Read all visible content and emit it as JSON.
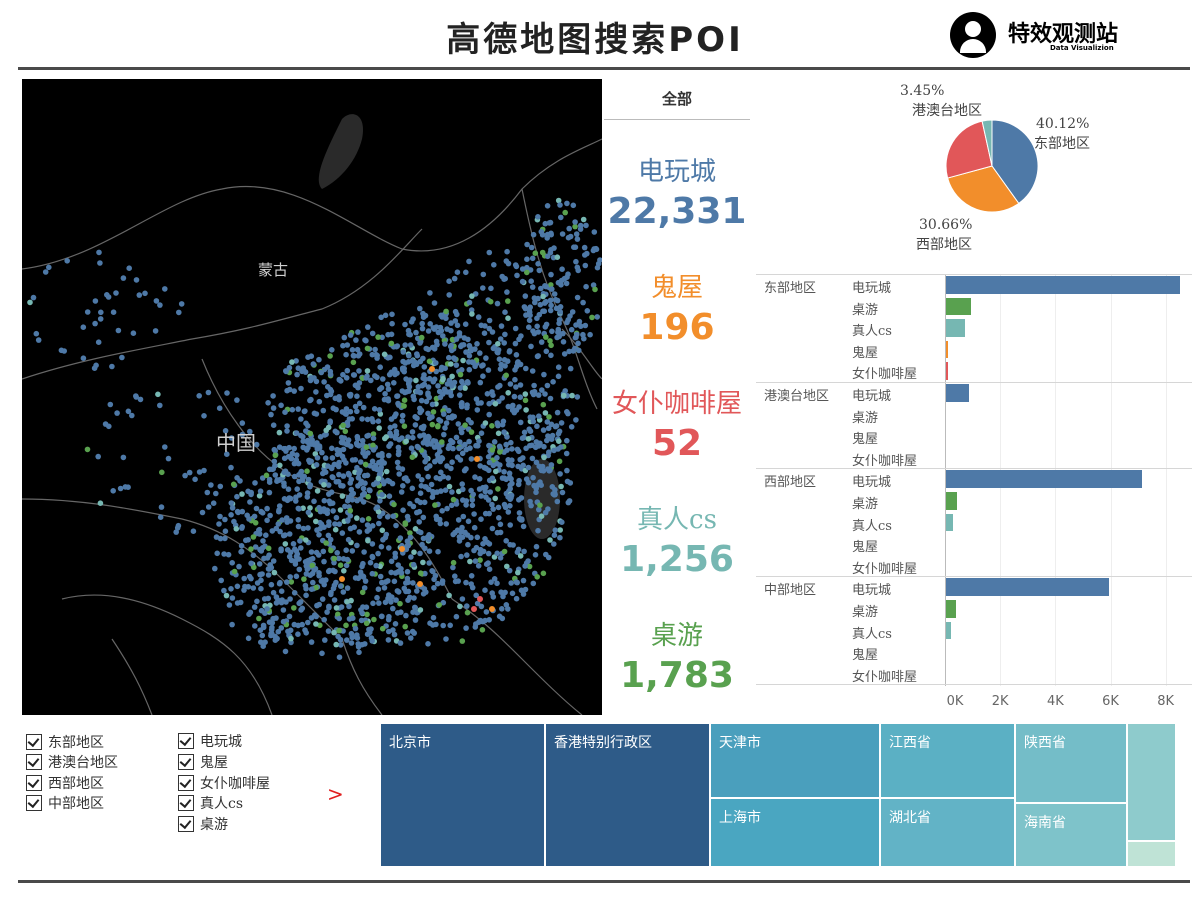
{
  "title": "高德地图搜索POI",
  "logo": {
    "name": "特效观测站",
    "subtitle": "Data Visualizion",
    "icon": "user-silhouette-icon"
  },
  "map": {
    "labels": [
      {
        "text": "蒙古"
      },
      {
        "text": "中国"
      }
    ],
    "point_colors": {
      "电玩城": "#4e79a7",
      "桌游": "#59a14f",
      "真人cs": "#76b7b2",
      "鬼屋": "#f28e2b",
      "女仆咖啡屋": "#e15759"
    }
  },
  "kpi": {
    "header": "全部",
    "items": [
      {
        "label": "电玩城",
        "value": "22,331",
        "color": "#4e79a7"
      },
      {
        "label": "鬼屋",
        "value": "196",
        "color": "#f28e2b"
      },
      {
        "label": "女仆咖啡屋",
        "value": "52",
        "color": "#e15759"
      },
      {
        "label": "真人cs",
        "value": "1,256",
        "color": "#76b7b2"
      },
      {
        "label": "桌游",
        "value": "1,783",
        "color": "#59a14f"
      }
    ]
  },
  "chart_data": [
    {
      "type": "pie",
      "slices": [
        {
          "name": "东部地区",
          "percent": 40.12,
          "label": "40.12%",
          "color": "#4e79a7"
        },
        {
          "name": "西部地区",
          "percent": 30.66,
          "label": "30.66%",
          "color": "#f28e2b"
        },
        {
          "name": "中部地区",
          "percent": 25.77,
          "label": "",
          "color": "#e15759"
        },
        {
          "name": "港澳台地区",
          "percent": 3.45,
          "label": "3.45%",
          "color": "#76b7b2"
        }
      ]
    },
    {
      "type": "bar",
      "orientation": "horizontal",
      "xlim": [
        0,
        8700
      ],
      "xticks": [
        {
          "value": 0,
          "label": "0K"
        },
        {
          "value": 2000,
          "label": "2K"
        },
        {
          "value": 4000,
          "label": "4K"
        },
        {
          "value": 6000,
          "label": "6K"
        },
        {
          "value": 8000,
          "label": "8K"
        }
      ],
      "categories": [
        "电玩城",
        "桌游",
        "真人cs",
        "鬼屋",
        "女仆咖啡屋"
      ],
      "colors": {
        "电玩城": "#4e79a7",
        "桌游": "#59a14f",
        "真人cs": "#76b7b2",
        "鬼屋": "#f28e2b",
        "女仆咖啡屋": "#e15759"
      },
      "groups": [
        {
          "region": "东部地区",
          "rows": [
            {
              "cat": "电玩城",
              "value": 8500
            },
            {
              "cat": "桌游",
              "value": 900
            },
            {
              "cat": "真人cs",
              "value": 700
            },
            {
              "cat": "鬼屋",
              "value": 80
            },
            {
              "cat": "女仆咖啡屋",
              "value": 20
            }
          ]
        },
        {
          "region": "港澳台地区",
          "rows": [
            {
              "cat": "电玩城",
              "value": 830
            },
            {
              "cat": "桌游",
              "value": 0
            },
            {
              "cat": "鬼屋",
              "value": 0
            },
            {
              "cat": "女仆咖啡屋",
              "value": 0
            }
          ]
        },
        {
          "region": "西部地区",
          "rows": [
            {
              "cat": "电玩城",
              "value": 7100
            },
            {
              "cat": "桌游",
              "value": 400
            },
            {
              "cat": "真人cs",
              "value": 260
            },
            {
              "cat": "鬼屋",
              "value": 0
            },
            {
              "cat": "女仆咖啡屋",
              "value": 0
            }
          ]
        },
        {
          "region": "中部地区",
          "rows": [
            {
              "cat": "电玩城",
              "value": 5900
            },
            {
              "cat": "桌游",
              "value": 350
            },
            {
              "cat": "真人cs",
              "value": 180
            },
            {
              "cat": "鬼屋",
              "value": 0
            },
            {
              "cat": "女仆咖啡屋",
              "value": 0
            }
          ]
        }
      ]
    },
    {
      "type": "treemap",
      "cells": [
        {
          "name": "北京市",
          "color": "#2e5b88"
        },
        {
          "name": "香港特别行政区",
          "color": "#2e5b88"
        },
        {
          "name": "天津市",
          "color": "#4a9fbd"
        },
        {
          "name": "上海市",
          "color": "#4aa6c1"
        },
        {
          "name": "江西省",
          "color": "#5bb0c4"
        },
        {
          "name": "湖北省",
          "color": "#62b3c6"
        },
        {
          "name": "陕西省",
          "color": "#74bdc8"
        },
        {
          "name": "海南省",
          "color": "#7ec3ca"
        },
        {
          "name": "",
          "color": "#8ecbcc"
        },
        {
          "name": "",
          "color": "#bfe3d6"
        }
      ]
    }
  ],
  "filters": {
    "regions": [
      "东部地区",
      "港澳台地区",
      "西部地区",
      "中部地区"
    ],
    "categories": [
      "电玩城",
      "鬼屋",
      "女仆咖啡屋",
      "真人cs",
      "桌游"
    ],
    "arrow": ">"
  }
}
